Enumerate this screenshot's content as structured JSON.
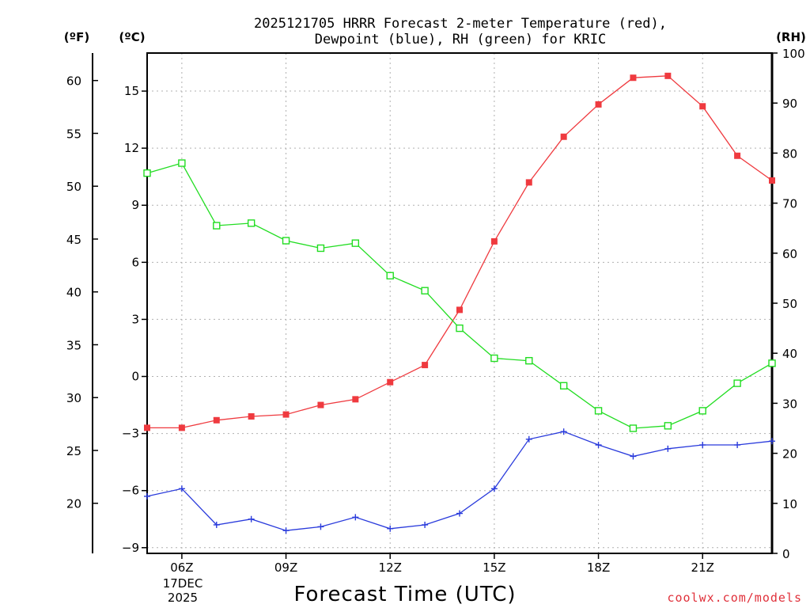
{
  "chart_data": {
    "type": "line",
    "title_line1": "2025121705 HRRR Forecast 2-meter Temperature (red),",
    "title_line2": "Dewpoint (blue), RH (green) for KRIC",
    "xlabel": "Forecast Time (UTC)",
    "credit": "coolwx.com/models",
    "units": {
      "fahrenheit": "(ºF)",
      "celsius": "(ºC)",
      "rh": "(RH)"
    },
    "x_hours": [
      5,
      6,
      7,
      8,
      9,
      10,
      11,
      12,
      13,
      14,
      15,
      16,
      17,
      18,
      19,
      20,
      21,
      22,
      23
    ],
    "xlim": [
      5,
      23
    ],
    "x_ticks": [
      {
        "hour": 6,
        "label": "06Z"
      },
      {
        "hour": 9,
        "label": "09Z"
      },
      {
        "hour": 12,
        "label": "12Z"
      },
      {
        "hour": 15,
        "label": "15Z"
      },
      {
        "hour": 18,
        "label": "18Z"
      },
      {
        "hour": 21,
        "label": "21Z"
      }
    ],
    "date_label_1": "17DEC",
    "date_label_2": "2025",
    "celsius_axis": {
      "range": [
        -9.3,
        17.0
      ],
      "ticks": [
        -9,
        -6,
        -3,
        0,
        3,
        6,
        9,
        12,
        15
      ],
      "tick_labels": [
        "−9",
        "−6",
        "−3",
        "0",
        "3",
        "6",
        "9",
        "12",
        "15"
      ]
    },
    "fahrenheit_ticks": [
      20,
      25,
      30,
      35,
      40,
      45,
      50,
      55,
      60
    ],
    "rh_axis": {
      "range": [
        0,
        100
      ],
      "ticks": [
        0,
        10,
        20,
        30,
        40,
        50,
        60,
        70,
        80,
        90,
        100
      ]
    },
    "series": [
      {
        "name": "2-meter Temperature",
        "axis": "celsius",
        "color": "#ef3a3f",
        "marker": "filled-square",
        "values": [
          -2.7,
          -2.7,
          -2.3,
          -2.1,
          -2.0,
          -1.5,
          -1.2,
          -0.3,
          0.6,
          3.5,
          7.1,
          10.2,
          12.6,
          14.3,
          15.7,
          15.8,
          14.2,
          11.6,
          10.3
        ]
      },
      {
        "name": "Dewpoint",
        "axis": "celsius",
        "color": "#2a3bdc",
        "marker": "plus",
        "values": [
          -6.3,
          -5.9,
          -7.8,
          -7.5,
          -8.1,
          -7.9,
          -7.4,
          -8.0,
          -7.8,
          -7.2,
          -5.9,
          -3.3,
          -2.9,
          -3.6,
          -4.2,
          -3.8,
          -3.6,
          -3.6,
          -3.4
        ]
      },
      {
        "name": "Relative Humidity",
        "axis": "rh",
        "color": "#22dd22",
        "marker": "open-square",
        "values": [
          76,
          78,
          65.5,
          66,
          62.5,
          61,
          62,
          55.5,
          52.5,
          45,
          39,
          38.5,
          33.5,
          28.5,
          25,
          25.5,
          28.5,
          34,
          38
        ]
      }
    ]
  }
}
